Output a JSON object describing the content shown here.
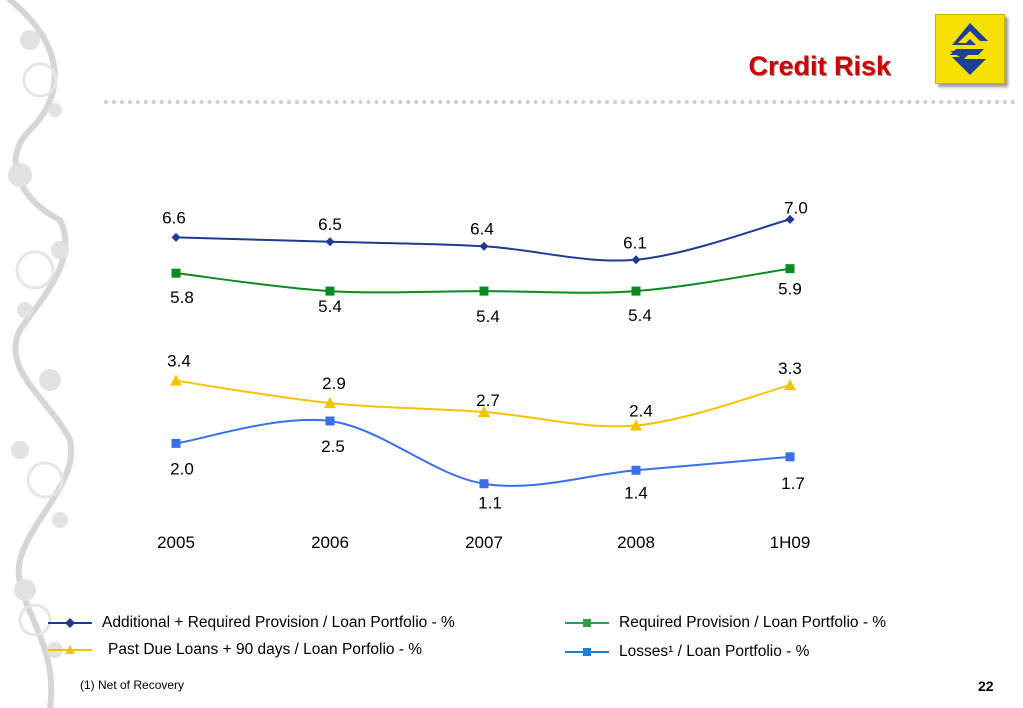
{
  "slide": {
    "title": "Credit Risk",
    "footnote": "(1) Net of Recovery",
    "page_number": "22",
    "page_number_alt": "22"
  },
  "colors": {
    "title": "#cc0000",
    "series_1": "#1f3a93",
    "series_2": "#0a8a1f",
    "series_3": "#f5c400",
    "series_4": "#3a6fe8",
    "logo_bg": "#f7e100",
    "logo_mark": "#1e3f95"
  },
  "icons": {
    "logo": "banco-do-brasil-logo-icon"
  },
  "legend": [
    {
      "label": "Additional + Required Provision / Loan Portfolio - %",
      "color": "#1f3a93",
      "marker": "diamond"
    },
    {
      "label": "Required Provision / Loan Portfolio - %",
      "color": "#2e9d4f",
      "marker": "square"
    },
    {
      "label": "Past Due Loans + 90 days / Loan Porfolio - %",
      "color": "#f5c400",
      "marker": "triangle"
    },
    {
      "label": "Losses¹ / Loan Portfolio - %",
      "color": "#1a7fd6",
      "marker": "square"
    }
  ],
  "chart_data": {
    "type": "line",
    "categories": [
      "2005",
      "2006",
      "2007",
      "2008",
      "1H09"
    ],
    "ylim": [
      0,
      8
    ],
    "series": [
      {
        "name": "Additional + Required Provision / Loan Portfolio - %",
        "values": [
          6.6,
          6.5,
          6.4,
          6.1,
          7.0
        ],
        "color": "#1f3a93",
        "marker": "diamond"
      },
      {
        "name": "Required Provision / Loan Portfolio - %",
        "values": [
          5.8,
          5.4,
          5.4,
          5.4,
          5.9
        ],
        "color": "#0a8a1f",
        "marker": "square"
      },
      {
        "name": "Past Due Loans + 90 days / Loan Porfolio - %",
        "values": [
          3.4,
          2.9,
          2.7,
          2.4,
          3.3
        ],
        "color": "#f5c400",
        "marker": "triangle"
      },
      {
        "name": "Losses¹ / Loan Portfolio - %",
        "values": [
          2.0,
          2.5,
          1.1,
          1.4,
          1.7
        ],
        "color": "#3a6fe8",
        "marker": "square"
      }
    ],
    "labels_display": [
      [
        "6.6",
        "6.5",
        "6.4",
        "6.1",
        "7.0"
      ],
      [
        "5.8",
        "5.4",
        "5.4",
        "5.4",
        "5.9"
      ],
      [
        "3.4",
        "2.9",
        "2.7",
        "2.4",
        "3.3"
      ],
      [
        "2.0",
        "2.5",
        "1.1",
        "1.4",
        "1.7"
      ]
    ],
    "grid": false,
    "legend_position": "bottom"
  }
}
